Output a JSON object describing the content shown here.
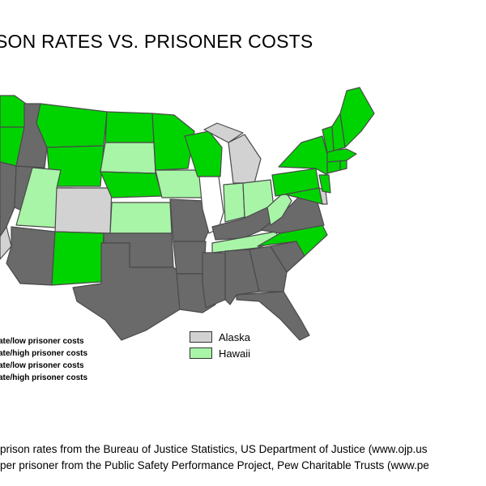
{
  "map": {
    "title": "SON RATES VS. PRISONER COSTS",
    "colors": {
      "bright_green": "#00d400",
      "light_green": "#a8f5a8",
      "light_gray": "#d2d2d2",
      "dark_gray": "#6a6a6a",
      "white": "#ffffff",
      "outline": "#4a4a4a"
    },
    "legend_left": [
      "ate/low prisoner costs",
      "ate/high prisoner costs",
      "ate/low prisoner costs",
      "ate/high prisoner costs"
    ],
    "legend_right": [
      {
        "label": "Alaska",
        "color": "#d2d2d2"
      },
      {
        "label": "Hawaii",
        "color": "#a8f5a8"
      }
    ],
    "source_lines": [
      " prison rates from the Bureau of Justice Statistics, US Department of Justice (www.ojp.us",
      " per prisoner from the Public Safety Performance Project, Pew Charitable Trusts (www.pe"
    ]
  }
}
